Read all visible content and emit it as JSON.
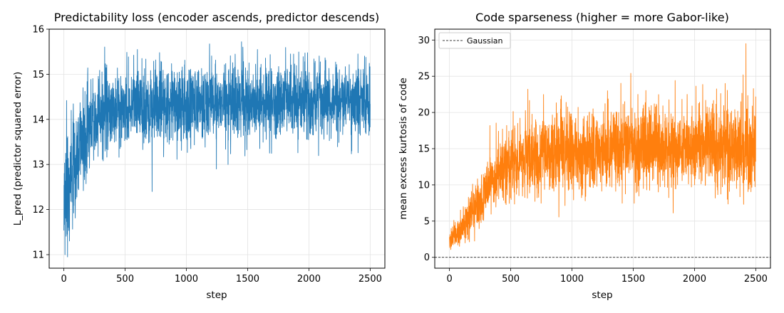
{
  "chart_data": [
    {
      "type": "line",
      "title": "Predictability loss (encoder ascends, predictor descends)",
      "xlabel": "step",
      "ylabel": "L_pred (predictor squared error)",
      "xlim": [
        -120,
        2620
      ],
      "ylim": [
        10.7,
        16.0
      ],
      "xticks": [
        0,
        500,
        1000,
        1500,
        2000,
        2500
      ],
      "yticks": [
        11,
        12,
        13,
        14,
        15,
        16
      ],
      "grid": true,
      "series": [
        {
          "color": "#1f77b4",
          "trend": [
            {
              "x": 0,
              "y": 12.2
            },
            {
              "x": 50,
              "y": 12.6
            },
            {
              "x": 100,
              "y": 13.0
            },
            {
              "x": 150,
              "y": 13.5
            },
            {
              "x": 200,
              "y": 13.8
            },
            {
              "x": 300,
              "y": 14.1
            },
            {
              "x": 400,
              "y": 14.25
            },
            {
              "x": 600,
              "y": 14.3
            },
            {
              "x": 1000,
              "y": 14.35
            },
            {
              "x": 1500,
              "y": 14.4
            },
            {
              "x": 2000,
              "y": 14.42
            },
            {
              "x": 2500,
              "y": 14.45
            }
          ],
          "spread": [
            {
              "x": 0,
              "y": 0.55
            },
            {
              "x": 150,
              "y": 0.5
            },
            {
              "x": 300,
              "y": 0.38
            },
            {
              "x": 2500,
              "y": 0.33
            }
          ],
          "peaks": [
            {
              "x": 30,
              "y": 10.95
            },
            {
              "x": 60,
              "y": 14.2
            },
            {
              "x": 720,
              "y": 12.4
            },
            {
              "x": 1245,
              "y": 12.9
            },
            {
              "x": 1450,
              "y": 15.72
            },
            {
              "x": 1580,
              "y": 15.55
            },
            {
              "x": 1850,
              "y": 15.45
            },
            {
              "x": 2400,
              "y": 15.45
            },
            {
              "x": 2350,
              "y": 13.3
            },
            {
              "x": 600,
              "y": 15.55
            },
            {
              "x": 1340,
              "y": 13.0
            }
          ]
        }
      ]
    },
    {
      "type": "line",
      "title": "Code sparseness (higher = more Gabor-like)",
      "xlabel": "step",
      "ylabel": "mean excess kurtosis of code",
      "xlim": [
        -120,
        2620
      ],
      "ylim": [
        -1.5,
        31.5
      ],
      "xticks": [
        0,
        500,
        1000,
        1500,
        2000,
        2500
      ],
      "yticks": [
        0,
        5,
        10,
        15,
        20,
        25,
        30
      ],
      "grid": true,
      "legend": "top-left",
      "reference_line": {
        "y": 0,
        "label": "Gaussian",
        "style": "dashed",
        "color": "#000000"
      },
      "series": [
        {
          "color": "#ff7f0e",
          "trend": [
            {
              "x": 0,
              "y": 2.5
            },
            {
              "x": 100,
              "y": 4.0
            },
            {
              "x": 200,
              "y": 6.5
            },
            {
              "x": 300,
              "y": 9.5
            },
            {
              "x": 400,
              "y": 11.8
            },
            {
              "x": 500,
              "y": 13.0
            },
            {
              "x": 700,
              "y": 14.0
            },
            {
              "x": 1000,
              "y": 14.6
            },
            {
              "x": 1500,
              "y": 15.0
            },
            {
              "x": 2000,
              "y": 15.2
            },
            {
              "x": 2500,
              "y": 15.3
            }
          ],
          "spread": [
            {
              "x": 0,
              "y": 0.6
            },
            {
              "x": 200,
              "y": 1.3
            },
            {
              "x": 500,
              "y": 2.2
            },
            {
              "x": 2500,
              "y": 2.6
            }
          ],
          "peaks": [
            {
              "x": 2420,
              "y": 29.5
            },
            {
              "x": 1480,
              "y": 25.4
            },
            {
              "x": 2250,
              "y": 24.0
            },
            {
              "x": 1290,
              "y": 23.0
            },
            {
              "x": 640,
              "y": 23.2
            },
            {
              "x": 2500,
              "y": 22.2
            },
            {
              "x": 2400,
              "y": 10.0
            },
            {
              "x": 330,
              "y": 18.2
            },
            {
              "x": 1940,
              "y": 22.5
            },
            {
              "x": 20,
              "y": 1.8
            }
          ]
        }
      ]
    }
  ]
}
